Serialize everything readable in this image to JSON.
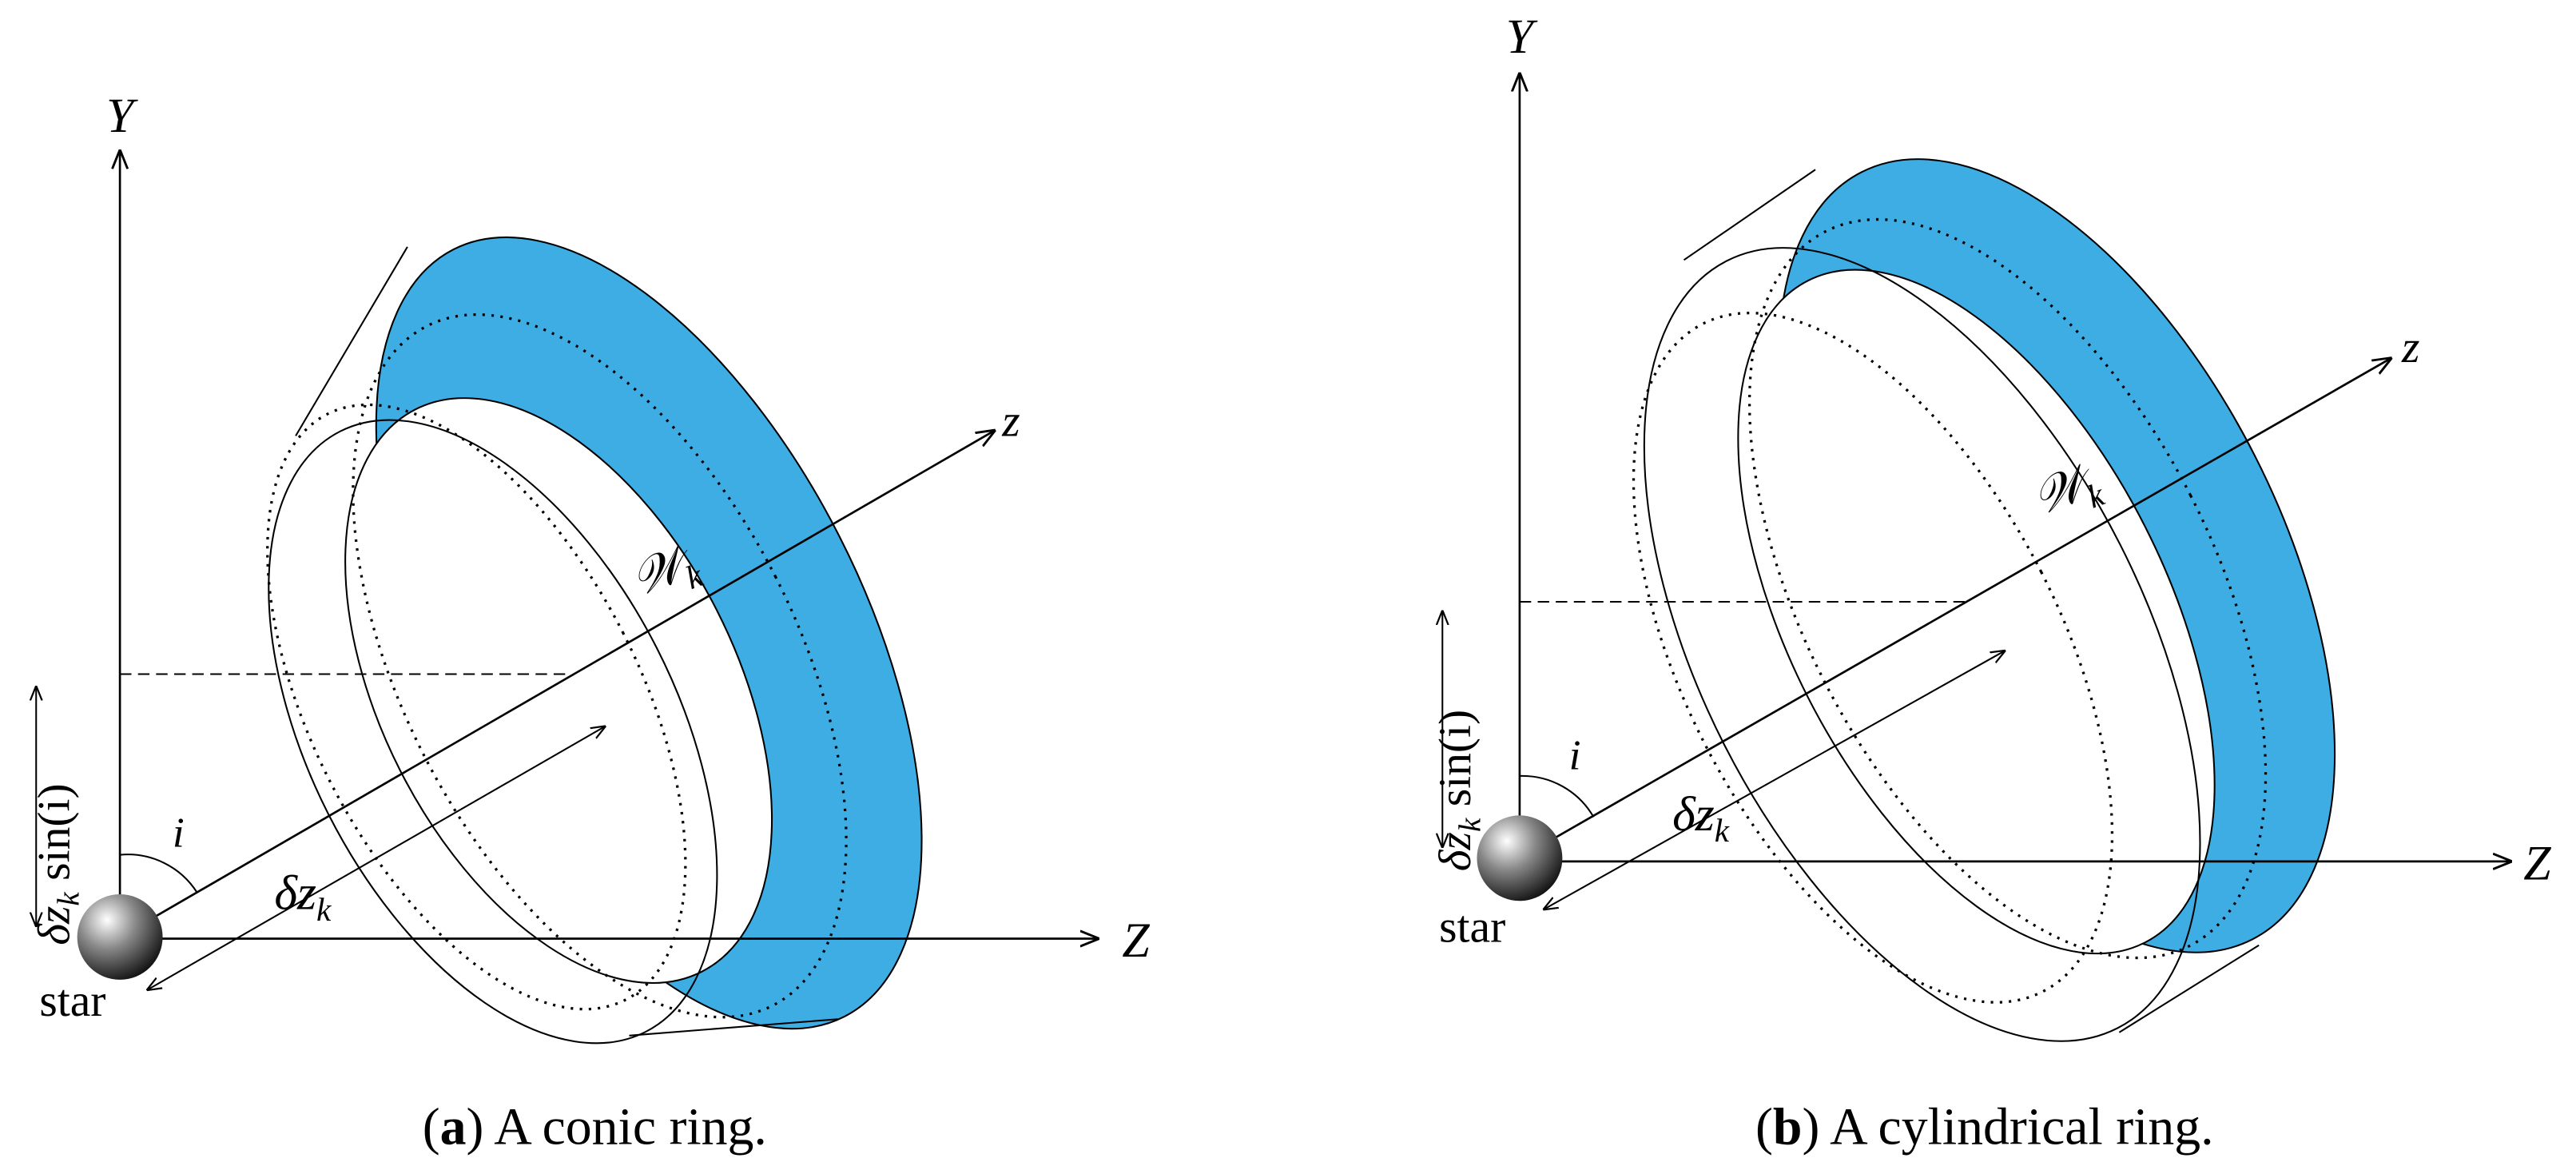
{
  "panels": [
    {
      "y_axis": "Y",
      "z_axis": "Z",
      "los_axis": "z",
      "inclination": "i",
      "depth": {
        "base": "δz",
        "sub": "k"
      },
      "offset_label": {
        "base": "δz",
        "sub": "k",
        "tail": " sin(i)"
      },
      "star": "star",
      "ring": {
        "base": "𝒲",
        "sub": "k"
      },
      "caption": {
        "tag": "a",
        "text": " A conic ring.",
        "open": "(",
        "close": ")"
      }
    },
    {
      "y_axis": "Y",
      "z_axis": "Z",
      "los_axis": "z",
      "inclination": "i",
      "depth": {
        "base": "δz",
        "sub": "k"
      },
      "offset_label": {
        "base": "δz",
        "sub": "k",
        "tail": " sin(i)"
      },
      "star": "star",
      "ring": {
        "base": "𝒲",
        "sub": "k"
      },
      "caption": {
        "tag": "b",
        "text": " A cylindrical ring.",
        "open": "(",
        "close": ")"
      }
    }
  ]
}
